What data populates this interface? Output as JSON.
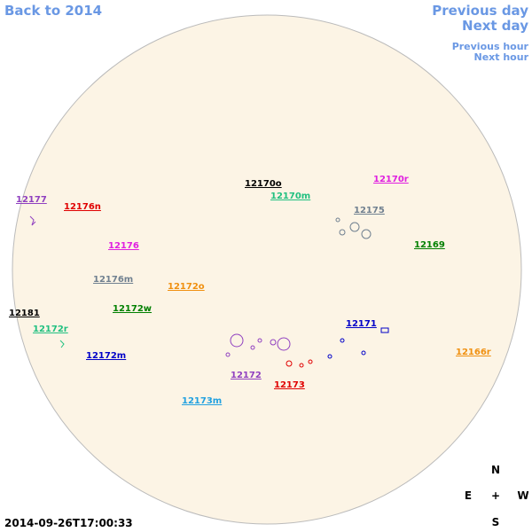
{
  "navigation": {
    "back_year": "Back to 2014",
    "previous_day": "Previous day",
    "next_day": "Next day",
    "previous_hour": "Previous hour",
    "next_hour": "Next hour"
  },
  "regions": [
    {
      "label": "12170o",
      "color": "#000000"
    },
    {
      "label": "12170m",
      "color": "#20c080"
    },
    {
      "label": "12170r",
      "color": "#e020e0"
    },
    {
      "label": "12175",
      "color": "#708090"
    },
    {
      "label": "12177",
      "color": "#9040c0"
    },
    {
      "label": "12176n",
      "color": "#e00000"
    },
    {
      "label": "12176",
      "color": "#e020e0"
    },
    {
      "label": "12169",
      "color": "#008000"
    },
    {
      "label": "12176m",
      "color": "#708090"
    },
    {
      "label": "12172o",
      "color": "#f09010"
    },
    {
      "label": "12172w",
      "color": "#008000"
    },
    {
      "label": "12181",
      "color": "#000000"
    },
    {
      "label": "12171",
      "color": "#0000c8"
    },
    {
      "label": "12172r",
      "color": "#20c080"
    },
    {
      "label": "12172m",
      "color": "#0000c8"
    },
    {
      "label": "12166r",
      "color": "#f09010"
    },
    {
      "label": "12172",
      "color": "#9040c0"
    },
    {
      "label": "12173",
      "color": "#e00000"
    },
    {
      "label": "12173m",
      "color": "#20a0e0"
    }
  ],
  "compass": {
    "north": "N",
    "east": "E",
    "center": "+",
    "west": "W",
    "south": "S"
  },
  "timestamp": "2014-09-26T17:00:33"
}
